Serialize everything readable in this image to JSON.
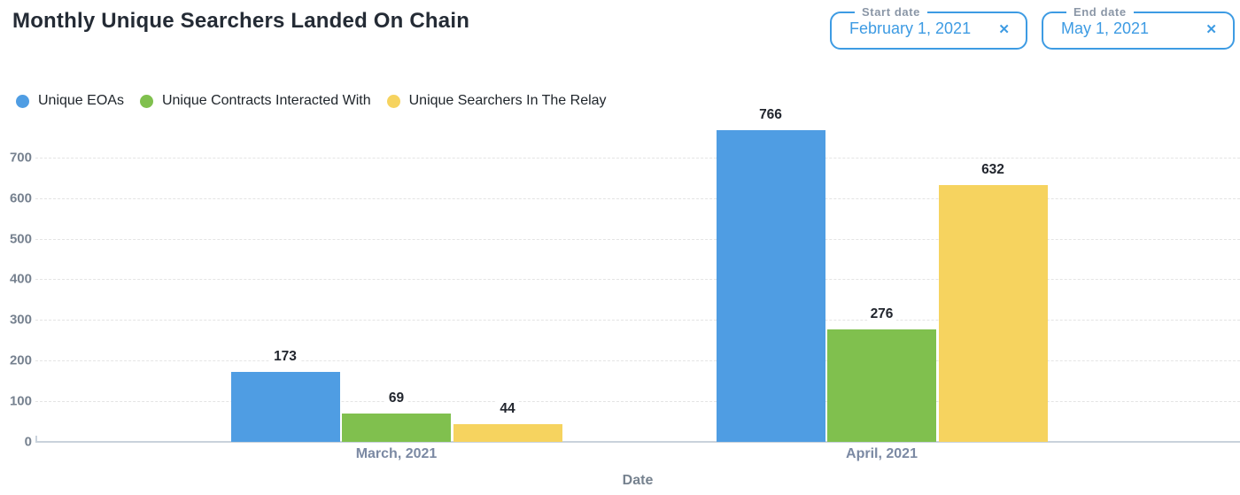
{
  "header": {
    "title": "Monthly Unique Searchers Landed On Chain"
  },
  "date_filters": {
    "start": {
      "label": "Start date",
      "value": "February 1, 2021",
      "clear_icon": "✕"
    },
    "end": {
      "label": "End date",
      "value": "May 1, 2021",
      "clear_icon": "✕"
    }
  },
  "colors": {
    "accent_blue": "#3d9be3",
    "series_blue": "#4f9de3",
    "series_green": "#80c04e",
    "series_yellow": "#f6d35f",
    "axis_text": "#76818f",
    "category_text": "#7b89a3"
  },
  "chart_data": {
    "type": "bar",
    "title": "Monthly Unique Searchers Landed On Chain",
    "categories": [
      "March, 2021",
      "April, 2021"
    ],
    "series": [
      {
        "name": "Unique EOAs",
        "color": "#4f9de3",
        "values": [
          173,
          766
        ]
      },
      {
        "name": "Unique Contracts Interacted With",
        "color": "#80c04e",
        "values": [
          69,
          276
        ]
      },
      {
        "name": "Unique Searchers In The Relay",
        "color": "#f6d35f",
        "values": [
          44,
          632
        ]
      }
    ],
    "xlabel": "Date",
    "ylabel": "",
    "ylim": [
      0,
      766
    ],
    "yticks": [
      0,
      100,
      200,
      300,
      400,
      500,
      600,
      700
    ],
    "grid": "horizontal-dashed",
    "legend_position": "top-left",
    "bar_value_labels": true
  }
}
